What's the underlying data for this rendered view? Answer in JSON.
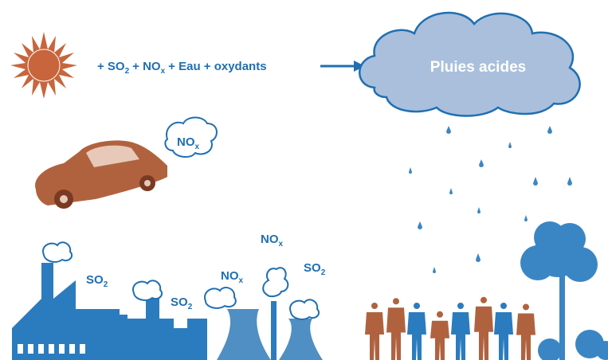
{
  "equation": {
    "terms": [
      {
        "text": "+ SO",
        "sub": "2"
      },
      {
        "text": "+ NO",
        "sub": "x"
      },
      {
        "text": "+ Eau + oxydants"
      }
    ]
  },
  "cloud_label": "Pluies acides",
  "car_emission": {
    "text": "NO",
    "sub": "x"
  },
  "emission_labels": [
    {
      "text": "SO",
      "sub": "2"
    },
    {
      "text": "SO",
      "sub": "2"
    },
    {
      "text": "NO",
      "sub": "x"
    },
    {
      "text": "NO",
      "sub": "x"
    },
    {
      "text": "SO",
      "sub": "2"
    }
  ]
}
